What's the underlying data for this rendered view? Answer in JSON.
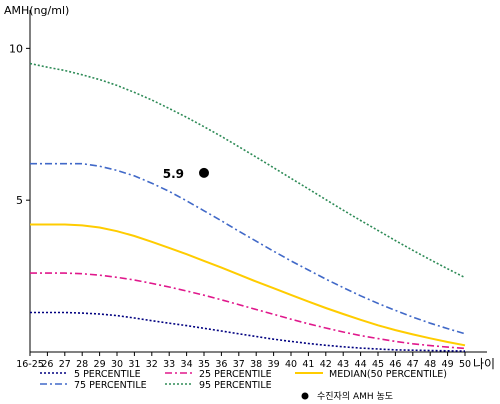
{
  "chart_data": {
    "type": "line",
    "ylabel": "AMH(ng/ml)",
    "xlabel": "나이",
    "x": [
      "16-25",
      "26",
      "27",
      "28",
      "29",
      "30",
      "31",
      "32",
      "33",
      "34",
      "35",
      "36",
      "37",
      "38",
      "39",
      "40",
      "41",
      "42",
      "43",
      "44",
      "45",
      "46",
      "47",
      "48",
      "49",
      "50"
    ],
    "yticks": [
      5,
      10
    ],
    "ylim": [
      0,
      11
    ],
    "grid": false,
    "series": [
      {
        "name": "5 PERCENTILE",
        "color": "#000080",
        "dash": "dot",
        "values": [
          1.3,
          1.3,
          1.3,
          1.28,
          1.25,
          1.2,
          1.12,
          1.03,
          0.95,
          0.87,
          0.78,
          0.69,
          0.6,
          0.51,
          0.42,
          0.35,
          0.28,
          0.22,
          0.17,
          0.13,
          0.1,
          0.07,
          0.06,
          0.05,
          0.04,
          0.03
        ]
      },
      {
        "name": "25 PERCENTILE",
        "color": "#e0188c",
        "dash": "dashdot",
        "values": [
          2.6,
          2.6,
          2.6,
          2.58,
          2.53,
          2.46,
          2.37,
          2.26,
          2.14,
          2.01,
          1.87,
          1.72,
          1.56,
          1.4,
          1.24,
          1.08,
          0.93,
          0.79,
          0.66,
          0.54,
          0.44,
          0.35,
          0.27,
          0.21,
          0.16,
          0.12
        ]
      },
      {
        "name": "MEDIAN(50 PERCENTILE)",
        "color": "#ffcc00",
        "dash": "solid",
        "values": [
          4.2,
          4.2,
          4.2,
          4.17,
          4.1,
          3.98,
          3.82,
          3.63,
          3.43,
          3.22,
          3.0,
          2.78,
          2.55,
          2.32,
          2.1,
          1.88,
          1.66,
          1.45,
          1.25,
          1.06,
          0.88,
          0.72,
          0.58,
          0.45,
          0.33,
          0.22
        ]
      },
      {
        "name": "75 PERCENTILE",
        "color": "#4169c8",
        "dash": "dashdot",
        "values": [
          6.2,
          6.2,
          6.2,
          6.2,
          6.12,
          5.98,
          5.8,
          5.56,
          5.29,
          4.98,
          4.65,
          4.32,
          3.98,
          3.65,
          3.32,
          3.0,
          2.7,
          2.4,
          2.12,
          1.85,
          1.6,
          1.37,
          1.15,
          0.95,
          0.77,
          0.6
        ]
      },
      {
        "name": "95 PERCENTILE",
        "color": "#2e8b57",
        "dash": "dot",
        "values": [
          9.5,
          9.38,
          9.27,
          9.13,
          8.97,
          8.78,
          8.55,
          8.3,
          8.02,
          7.73,
          7.42,
          7.1,
          6.76,
          6.42,
          6.07,
          5.72,
          5.37,
          5.02,
          4.67,
          4.33,
          4.0,
          3.67,
          3.35,
          3.04,
          2.74,
          2.45
        ]
      }
    ],
    "point": {
      "x": "35",
      "y": 5.9,
      "label": "5.9",
      "legend": "수진자의 AMH 농도"
    },
    "legend_position": "bottom"
  }
}
